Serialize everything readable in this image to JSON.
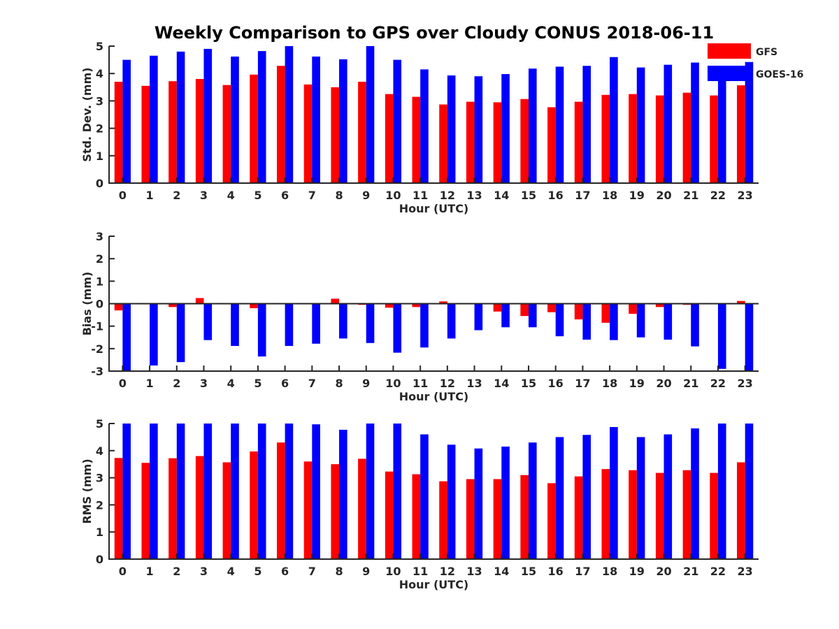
{
  "chart_data": {
    "type": "bar",
    "title": "Weekly Comparison to GPS over Cloudy CONUS 2018-06-11",
    "categories": [
      "0",
      "1",
      "2",
      "3",
      "4",
      "5",
      "6",
      "7",
      "8",
      "9",
      "10",
      "11",
      "12",
      "13",
      "14",
      "15",
      "16",
      "17",
      "18",
      "19",
      "20",
      "21",
      "22",
      "23"
    ],
    "colors": {
      "GFS": "#ff0000",
      "GOES-16": "#0000ff"
    },
    "legend": {
      "placement": "top-right",
      "entries": [
        "GFS",
        "GOES-16"
      ]
    },
    "panels": [
      {
        "ylabel": "Std. Dev. (mm)",
        "xlabel": "Hour (UTC)",
        "ylim": [
          0,
          5
        ],
        "yticks": [
          "0",
          "1",
          "2",
          "3",
          "4",
          "5"
        ],
        "series": [
          {
            "name": "GFS",
            "values": [
              3.7,
              3.55,
              3.72,
              3.8,
              3.58,
              3.96,
              4.28,
              3.6,
              3.5,
              3.7,
              3.25,
              3.15,
              2.87,
              2.97,
              2.95,
              3.07,
              2.77,
              2.97,
              3.22,
              3.25,
              3.2,
              3.3,
              3.2,
              3.57
            ]
          },
          {
            "name": "GOES-16",
            "values": [
              4.5,
              4.65,
              4.8,
              4.9,
              4.62,
              4.82,
              5.0,
              4.62,
              4.52,
              5.0,
              4.5,
              4.15,
              3.93,
              3.9,
              3.98,
              4.18,
              4.25,
              4.28,
              4.6,
              4.22,
              4.32,
              4.4,
              4.25,
              4.42
            ]
          }
        ]
      },
      {
        "ylabel": "Bias (mm)",
        "xlabel": "Hour (UTC)",
        "ylim": [
          -3,
          3
        ],
        "yticks": [
          "-3",
          "-2",
          "-1",
          "0",
          "1",
          "2",
          "3"
        ],
        "zero_line": true,
        "series": [
          {
            "name": "GFS",
            "values": [
              -0.3,
              -0.03,
              -0.15,
              0.25,
              -0.02,
              -0.2,
              -0.02,
              0.03,
              0.22,
              -0.05,
              -0.18,
              -0.15,
              0.1,
              -0.02,
              -0.35,
              -0.55,
              -0.38,
              -0.7,
              -0.85,
              -0.45,
              -0.15,
              -0.05,
              -0.02,
              0.12
            ]
          },
          {
            "name": "GOES-16",
            "values": [
              -3.0,
              -2.75,
              -2.6,
              -1.62,
              -1.88,
              -2.35,
              -1.88,
              -1.78,
              -1.55,
              -1.75,
              -2.18,
              -1.95,
              -1.55,
              -1.18,
              -1.05,
              -1.05,
              -1.45,
              -1.6,
              -1.62,
              -1.5,
              -1.6,
              -1.9,
              -2.9,
              -3.0
            ]
          }
        ]
      },
      {
        "ylabel": "RMS (mm)",
        "xlabel": "Hour (UTC)",
        "ylim": [
          0,
          5
        ],
        "yticks": [
          "0",
          "1",
          "2",
          "3",
          "4",
          "5"
        ],
        "series": [
          {
            "name": "GFS",
            "values": [
              3.73,
              3.55,
              3.72,
              3.8,
              3.57,
              3.97,
              4.3,
              3.6,
              3.5,
              3.7,
              3.23,
              3.13,
              2.87,
              2.95,
              2.95,
              3.1,
              2.8,
              3.05,
              3.32,
              3.28,
              3.18,
              3.28,
              3.18,
              3.57
            ]
          },
          {
            "name": "GOES-16",
            "values": [
              5.0,
              5.0,
              5.0,
              5.0,
              5.0,
              5.0,
              5.0,
              4.97,
              4.77,
              5.0,
              5.0,
              4.6,
              4.22,
              4.08,
              4.15,
              4.3,
              4.5,
              4.58,
              4.87,
              4.5,
              4.6,
              4.82,
              5.0,
              5.0
            ]
          }
        ]
      }
    ]
  }
}
